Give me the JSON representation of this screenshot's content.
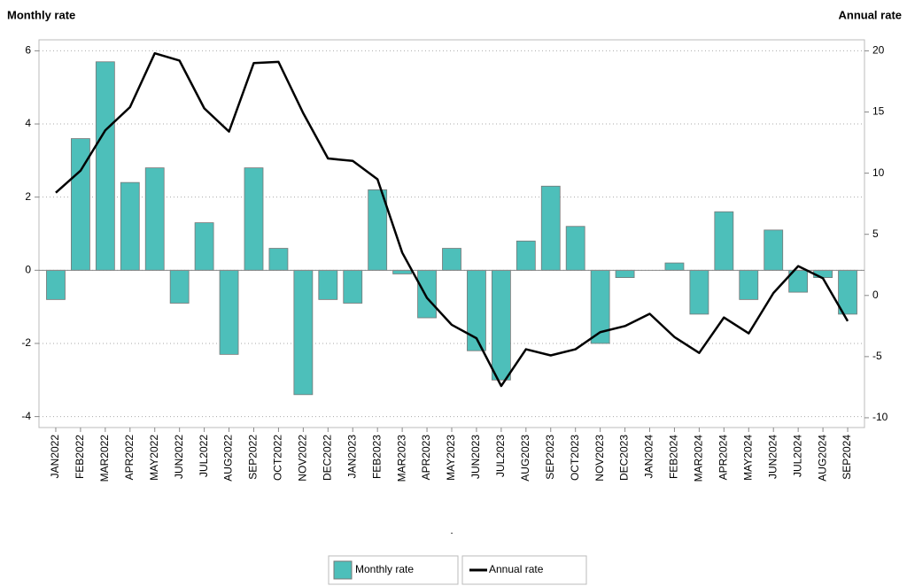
{
  "chart_data": {
    "type": "bar_line",
    "y_title": "Monthly rate",
    "y2_title": "Annual rate",
    "x_label": ".",
    "categories": [
      "JAN2022",
      "FEB2022",
      "MAR2022",
      "APR2022",
      "MAY2022",
      "JUN2022",
      "JUL2022",
      "AUG2022",
      "SEP2022",
      "OCT2022",
      "NOV2022",
      "DEC2022",
      "JAN2023",
      "FEB2023",
      "MAR2023",
      "APR2023",
      "MAY2023",
      "JUN2023",
      "JUL2023",
      "AUG2023",
      "SEP2023",
      "OCT2023",
      "NOV2023",
      "DEC2023",
      "JAN2024",
      "FEB2024",
      "MAR2024",
      "APR2024",
      "MAY2024",
      "JUN2024",
      "JUL2024",
      "AUG2024",
      "SEP2024"
    ],
    "series": [
      {
        "name": "Monthly rate",
        "color": "#4dbfba",
        "axis": "y",
        "values": [
          -0.8,
          3.6,
          5.7,
          2.4,
          2.8,
          -0.9,
          1.3,
          -2.3,
          2.8,
          0.6,
          -3.4,
          -0.8,
          -0.9,
          2.2,
          -0.1,
          -1.3,
          0.6,
          -2.2,
          -3.0,
          0.8,
          2.3,
          1.2,
          -2.0,
          -0.2,
          0,
          0.2,
          -1.2,
          1.6,
          -0.8,
          1.1,
          -0.6,
          -0.2,
          -1.2
        ]
      },
      {
        "name": "Annual rate",
        "color": "#000000",
        "axis": "y2",
        "values": [
          8.4,
          10.2,
          13.5,
          15.4,
          19.8,
          19.2,
          15.3,
          13.4,
          19.0,
          19.1,
          14.9,
          11.2,
          11.0,
          9.5,
          3.5,
          -0.2,
          -2.4,
          -3.5,
          -7.4,
          -4.4,
          -4.9,
          -4.4,
          -3.0,
          -2.5,
          -1.5,
          -3.4,
          -4.7,
          -1.8,
          -3.1,
          0.2,
          2.4,
          1.4,
          -2.1
        ]
      }
    ],
    "ylim": [
      -4.3,
      6.3
    ],
    "yticks": [
      -4,
      -2,
      0,
      2,
      4,
      6
    ],
    "y2lim": [
      -10.8,
      20.9
    ],
    "y2ticks": [
      -10,
      -5,
      0,
      5,
      10,
      15,
      20
    ],
    "grid": true
  }
}
